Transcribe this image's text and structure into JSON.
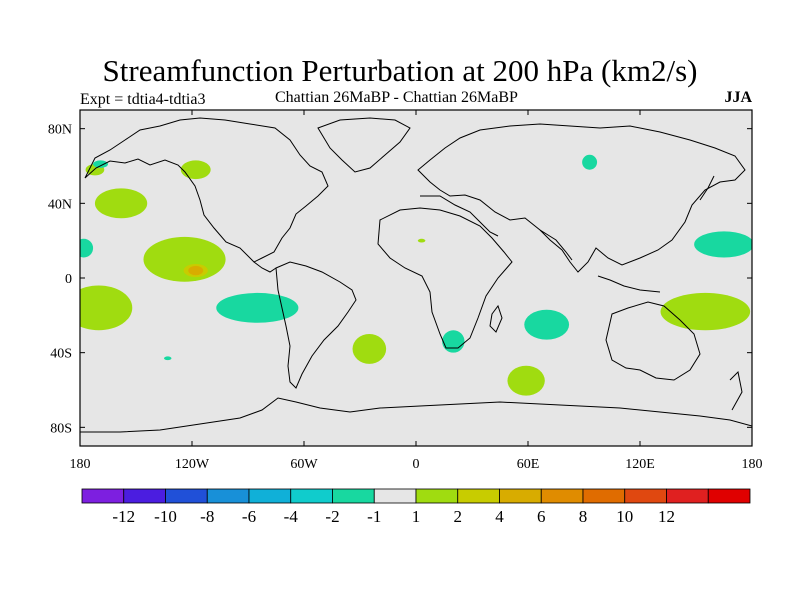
{
  "title": "Streamfunction Perturbation at 200 hPa (km2/s)",
  "subtitle_left": "Expt = tdtia4-tdtia3",
  "subtitle_center": "Chattian  26MaBP - Chattian  26MaBP",
  "subtitle_right": "JJA",
  "lat_ticks": [
    {
      "label": "80N",
      "value": 80
    },
    {
      "label": "40N",
      "value": 40
    },
    {
      "label": "0",
      "value": 0
    },
    {
      "label": "40S",
      "value": -40
    },
    {
      "label": "80S",
      "value": -80
    }
  ],
  "lon_ticks": [
    {
      "label": "180",
      "value": -180
    },
    {
      "label": "120W",
      "value": -120
    },
    {
      "label": "60W",
      "value": -60
    },
    {
      "label": "0",
      "value": 0
    },
    {
      "label": "60E",
      "value": 60
    },
    {
      "label": "120E",
      "value": 120
    },
    {
      "label": "180",
      "value": 180
    }
  ],
  "colorbar": {
    "colors": [
      "#7d1fe0",
      "#4b1de0",
      "#2050d8",
      "#1890d8",
      "#10b0d8",
      "#10cccc",
      "#18d8a0",
      "#e6e6e6",
      "#a0dc10",
      "#c8cc00",
      "#d8ac00",
      "#e08c00",
      "#e06c00",
      "#e04810",
      "#e02020",
      "#e00000"
    ],
    "labels": [
      "-12",
      "-10",
      "-8",
      "-6",
      "-4",
      "-2",
      "-1",
      "1",
      "2",
      "4",
      "6",
      "8",
      "10",
      "12"
    ]
  },
  "chart_data": {
    "type": "heatmap",
    "title": "Streamfunction Perturbation at 200 hPa (km2/s)",
    "variable": "streamfunction perturbation",
    "units": "km2/s",
    "season": "JJA",
    "experiment": "tdtia4-tdtia3",
    "xlim": [
      -180,
      180
    ],
    "ylim": [
      -90,
      90
    ],
    "background_bin": "-1 to 1",
    "features": [
      {
        "name": "subtropical N Pacific positive",
        "lon": -158,
        "lat": 40,
        "rx": 14,
        "ry": 8,
        "bin": "1 to 2"
      },
      {
        "name": "N Pacific small positive",
        "lon": -118,
        "lat": 58,
        "rx": 8,
        "ry": 5,
        "bin": "1 to 2"
      },
      {
        "name": "Alaska small positive",
        "lon": -172,
        "lat": 58,
        "rx": 5,
        "ry": 3,
        "bin": "1 to 2"
      },
      {
        "name": "Alaska small negative",
        "lon": -169,
        "lat": 61,
        "rx": 4,
        "ry": 2,
        "bin": "-2 to -1"
      },
      {
        "name": "tropical E Pacific positive",
        "lon": -124,
        "lat": 10,
        "rx": 22,
        "ry": 12,
        "bin": "1 to 2",
        "max_bin": "4 to 6"
      },
      {
        "name": "W Pacific dateline negative",
        "lon": -178,
        "lat": 16,
        "rx": 5,
        "ry": 5,
        "bin": "-2 to -1"
      },
      {
        "name": "S Pacific positive",
        "lon": -170,
        "lat": -16,
        "rx": 18,
        "ry": 12,
        "bin": "1 to 2"
      },
      {
        "name": "S America Pacific negative",
        "lon": -85,
        "lat": -16,
        "rx": 22,
        "ry": 8,
        "bin": "-2 to -1"
      },
      {
        "name": "S Pacific small negative",
        "lon": -133,
        "lat": -43,
        "rx": 2,
        "ry": 1,
        "bin": "-2 to -1"
      },
      {
        "name": "S Atlantic positive",
        "lon": -25,
        "lat": -38,
        "rx": 9,
        "ry": 8,
        "bin": "1 to 2"
      },
      {
        "name": "Siberia negative",
        "lon": 93,
        "lat": 62,
        "rx": 4,
        "ry": 4,
        "bin": "-2 to -1"
      },
      {
        "name": "Africa small positive",
        "lon": 3,
        "lat": 20,
        "rx": 2,
        "ry": 1,
        "bin": "1 to 2"
      },
      {
        "name": "S Africa negative",
        "lon": 20,
        "lat": -34,
        "rx": 6,
        "ry": 6,
        "bin": "-2 to -1"
      },
      {
        "name": "Indian Ocean negative",
        "lon": 70,
        "lat": -25,
        "rx": 12,
        "ry": 8,
        "bin": "-2 to -1"
      },
      {
        "name": "Southern Indian Ocean positive",
        "lon": 59,
        "lat": -55,
        "rx": 10,
        "ry": 8,
        "bin": "1 to 2"
      },
      {
        "name": "NW Pacific negative",
        "lon": 165,
        "lat": 18,
        "rx": 16,
        "ry": 7,
        "bin": "-2 to -1"
      },
      {
        "name": "SW Pacific positive",
        "lon": 155,
        "lat": -18,
        "rx": 24,
        "ry": 10,
        "bin": "1 to 2"
      }
    ]
  }
}
